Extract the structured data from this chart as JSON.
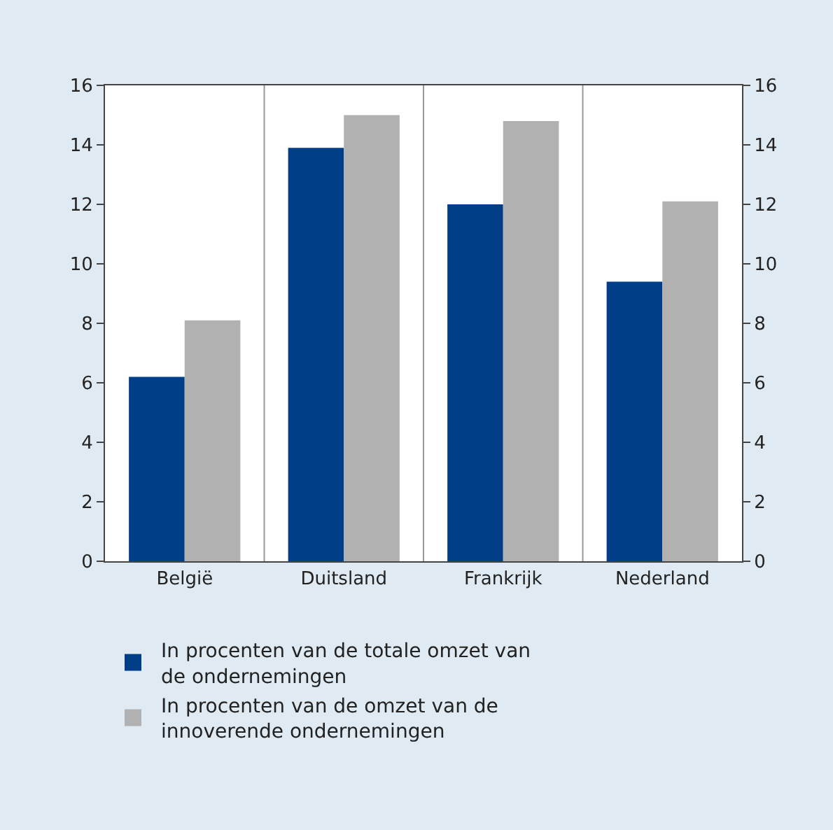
{
  "chart_data": {
    "type": "bar",
    "categories": [
      "België",
      "Duitsland",
      "Frankrijk",
      "Nederland"
    ],
    "series": [
      {
        "name": "In procenten van de totale omzet van de ondernemingen",
        "color": "#003f87",
        "values": [
          6.2,
          13.9,
          12.0,
          9.4
        ]
      },
      {
        "name": "In procenten van de omzet van de innoverende ondernemingen",
        "color": "#b1b1b1",
        "values": [
          8.1,
          15.0,
          14.8,
          12.1
        ]
      }
    ],
    "ylim": [
      0,
      16
    ],
    "yticks": [
      0,
      2,
      4,
      6,
      8,
      10,
      12,
      14,
      16
    ],
    "y2lim": [
      0,
      16
    ],
    "y2ticks": [
      0,
      2,
      4,
      6,
      8,
      10,
      12,
      14,
      16
    ],
    "grid": "x",
    "legend": "bottom"
  }
}
